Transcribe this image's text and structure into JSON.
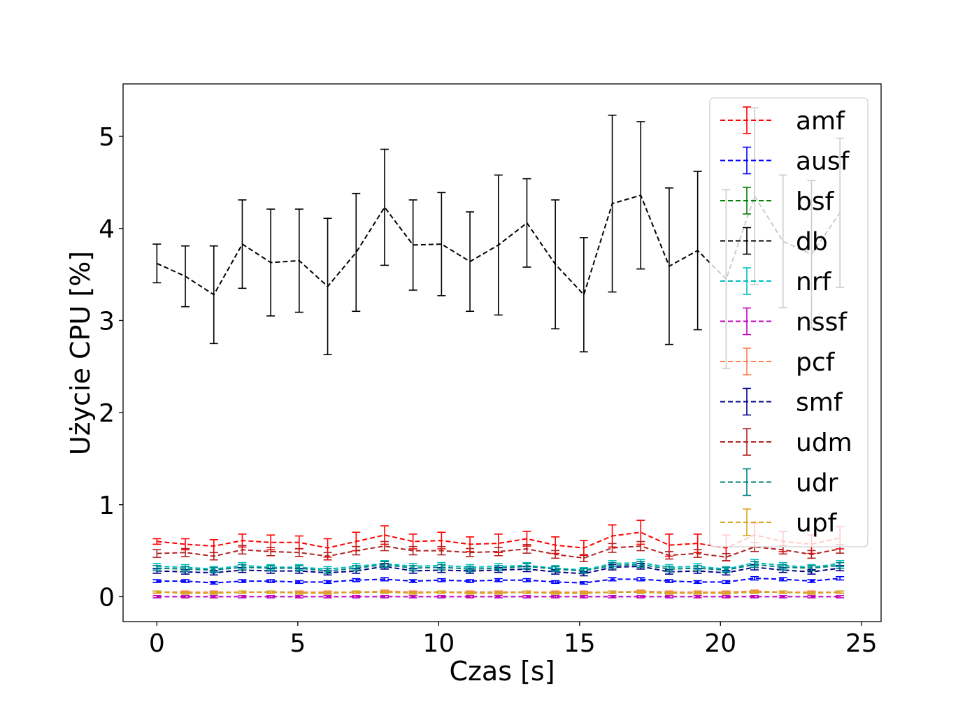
{
  "chart_data": {
    "type": "line",
    "title": "",
    "xlabel": "Czas [s]",
    "ylabel": "Użycie CPU [%]",
    "xlim": [
      -1.2,
      25.7
    ],
    "ylim": [
      -0.27,
      5.57
    ],
    "xticks": [
      0,
      5,
      10,
      15,
      20,
      25
    ],
    "yticks": [
      0,
      1,
      2,
      3,
      4,
      5
    ],
    "grid": false,
    "legend_position": "top-right",
    "line_style": "dashed",
    "error_bars": true,
    "x": [
      0,
      1.01,
      2.02,
      3.03,
      4.04,
      5.05,
      6.06,
      7.07,
      8.08,
      9.09,
      10.1,
      11.11,
      12.12,
      13.13,
      14.14,
      15.15,
      16.16,
      17.17,
      18.18,
      19.19,
      20.2,
      21.21,
      22.22,
      23.23,
      24.24
    ],
    "series": [
      {
        "name": "amf",
        "color": "#ff0000",
        "values": [
          0.6,
          0.57,
          0.55,
          0.61,
          0.59,
          0.59,
          0.53,
          0.6,
          0.67,
          0.6,
          0.61,
          0.57,
          0.58,
          0.63,
          0.56,
          0.53,
          0.66,
          0.7,
          0.56,
          0.58,
          0.53,
          0.67,
          0.6,
          0.57,
          0.64
        ],
        "errors": [
          0.03,
          0.06,
          0.07,
          0.07,
          0.08,
          0.07,
          0.1,
          0.1,
          0.1,
          0.08,
          0.09,
          0.08,
          0.1,
          0.08,
          0.09,
          0.08,
          0.12,
          0.13,
          0.12,
          0.1,
          0.14,
          0.13,
          0.11,
          0.1,
          0.12
        ]
      },
      {
        "name": "ausf",
        "color": "#0000ff",
        "values": [
          0.17,
          0.17,
          0.15,
          0.17,
          0.17,
          0.16,
          0.16,
          0.18,
          0.19,
          0.17,
          0.18,
          0.17,
          0.18,
          0.18,
          0.16,
          0.15,
          0.19,
          0.19,
          0.17,
          0.16,
          0.16,
          0.2,
          0.19,
          0.17,
          0.2
        ]
      },
      {
        "name": "bsf",
        "color": "#008000",
        "values": [
          0.05,
          0.05,
          0.04,
          0.05,
          0.05,
          0.05,
          0.04,
          0.05,
          0.05,
          0.05,
          0.05,
          0.05,
          0.05,
          0.05,
          0.04,
          0.04,
          0.05,
          0.05,
          0.04,
          0.05,
          0.04,
          0.05,
          0.05,
          0.04,
          0.05
        ]
      },
      {
        "name": "db",
        "color": "#000000",
        "values": [
          3.62,
          3.48,
          3.28,
          3.83,
          3.63,
          3.65,
          3.37,
          3.74,
          4.23,
          3.82,
          3.83,
          3.64,
          3.82,
          4.06,
          3.61,
          3.28,
          4.27,
          4.36,
          3.59,
          3.76,
          3.45,
          4.35,
          3.86,
          3.72,
          4.17
        ],
        "errors": [
          0.21,
          0.33,
          0.53,
          0.48,
          0.58,
          0.56,
          0.74,
          0.64,
          0.63,
          0.49,
          0.56,
          0.54,
          0.76,
          0.48,
          0.7,
          0.62,
          0.96,
          0.8,
          0.85,
          0.86,
          0.97,
          0.96,
          0.72,
          0.8,
          0.81
        ]
      },
      {
        "name": "nrf",
        "color": "#00bfbf",
        "values": [
          0.33,
          0.32,
          0.3,
          0.34,
          0.32,
          0.32,
          0.3,
          0.33,
          0.36,
          0.33,
          0.34,
          0.32,
          0.33,
          0.34,
          0.31,
          0.29,
          0.36,
          0.37,
          0.32,
          0.33,
          0.3,
          0.37,
          0.34,
          0.32,
          0.36
        ]
      },
      {
        "name": "nssf",
        "color": "#bf00bf",
        "values": [
          0.0,
          0.0,
          0.0,
          0.0,
          0.0,
          0.0,
          0.0,
          0.0,
          0.0,
          0.0,
          0.0,
          0.0,
          0.0,
          0.0,
          0.0,
          0.0,
          0.0,
          0.0,
          0.0,
          0.0,
          0.0,
          0.0,
          0.0,
          0.0,
          0.0
        ]
      },
      {
        "name": "pcf",
        "color": "#ff7f50",
        "values": [
          0.05,
          0.05,
          0.05,
          0.05,
          0.05,
          0.05,
          0.05,
          0.05,
          0.06,
          0.05,
          0.05,
          0.05,
          0.05,
          0.05,
          0.05,
          0.05,
          0.05,
          0.06,
          0.05,
          0.05,
          0.05,
          0.06,
          0.05,
          0.05,
          0.05
        ]
      },
      {
        "name": "smf",
        "color": "#00008b",
        "values": [
          0.28,
          0.27,
          0.26,
          0.29,
          0.28,
          0.28,
          0.26,
          0.28,
          0.33,
          0.28,
          0.29,
          0.28,
          0.29,
          0.3,
          0.27,
          0.25,
          0.32,
          0.33,
          0.27,
          0.28,
          0.26,
          0.32,
          0.29,
          0.27,
          0.31
        ]
      },
      {
        "name": "udm",
        "color": "#b22222",
        "values": [
          0.47,
          0.48,
          0.44,
          0.51,
          0.49,
          0.48,
          0.44,
          0.5,
          0.55,
          0.5,
          0.5,
          0.48,
          0.49,
          0.52,
          0.46,
          0.42,
          0.53,
          0.55,
          0.45,
          0.47,
          0.43,
          0.54,
          0.51,
          0.46,
          0.52
        ]
      },
      {
        "name": "udr",
        "color": "#008080",
        "values": [
          0.31,
          0.3,
          0.29,
          0.32,
          0.31,
          0.31,
          0.28,
          0.31,
          0.35,
          0.31,
          0.32,
          0.3,
          0.31,
          0.33,
          0.3,
          0.28,
          0.34,
          0.35,
          0.3,
          0.31,
          0.29,
          0.35,
          0.32,
          0.31,
          0.34
        ]
      },
      {
        "name": "upf",
        "color": "#daa520",
        "values": [
          0.05,
          0.04,
          0.04,
          0.05,
          0.05,
          0.04,
          0.04,
          0.05,
          0.05,
          0.04,
          0.05,
          0.04,
          0.04,
          0.05,
          0.04,
          0.04,
          0.05,
          0.05,
          0.04,
          0.04,
          0.04,
          0.05,
          0.05,
          0.04,
          0.05
        ]
      }
    ]
  }
}
